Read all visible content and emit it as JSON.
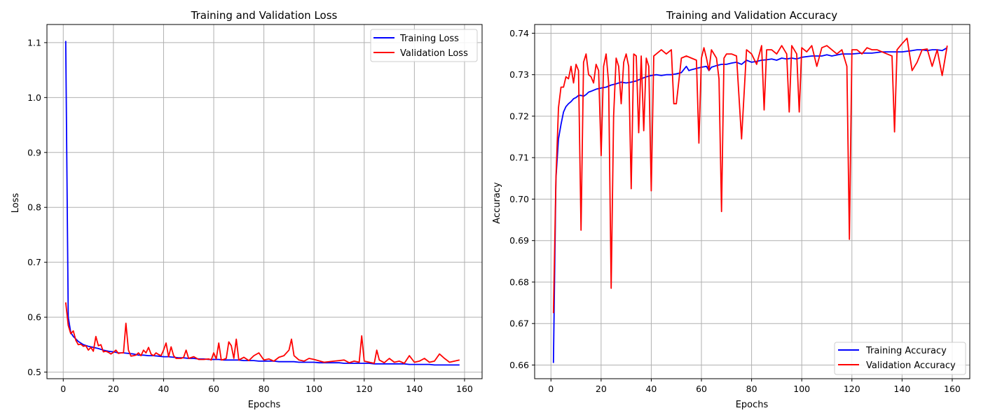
{
  "colors": {
    "training": "#0000ff",
    "validation": "#ff0000",
    "grid": "#b0b0b0"
  },
  "chart_data": [
    {
      "type": "line",
      "title": "Training and Validation Loss",
      "xlabel": "Epochs",
      "ylabel": "Loss",
      "xlim": [
        -6.5,
        167
      ],
      "ylim": [
        0.488,
        1.133
      ],
      "xticks": [
        0,
        20,
        40,
        60,
        80,
        100,
        120,
        140,
        160
      ],
      "yticks": [
        0.5,
        0.6,
        0.7,
        0.8,
        0.9,
        1.0,
        1.1
      ],
      "ytick_labels": [
        "0.5",
        "0.6",
        "0.7",
        "0.8",
        "0.9",
        "1.0",
        "1.1"
      ],
      "grid": true,
      "legend": "top-right",
      "series": [
        {
          "name": "Training Loss",
          "color": "#0000ff",
          "x": [
            1,
            2,
            3,
            4,
            6,
            8,
            10,
            12,
            14,
            16,
            18,
            20,
            22,
            24,
            26,
            28,
            30,
            32,
            34,
            36,
            38,
            40,
            42,
            44,
            46,
            48,
            50,
            52,
            54,
            56,
            58,
            60,
            62,
            64,
            66,
            68,
            70,
            72,
            74,
            76,
            78,
            80,
            82,
            84,
            86,
            88,
            90,
            92,
            94,
            96,
            98,
            100,
            102,
            104,
            106,
            108,
            110,
            112,
            114,
            116,
            118,
            120,
            122,
            124,
            126,
            128,
            130,
            132,
            134,
            136,
            138,
            140,
            142,
            144,
            146,
            148,
            150,
            152,
            154,
            156,
            158
          ],
          "y": [
            1.103,
            0.6,
            0.572,
            0.565,
            0.556,
            0.55,
            0.547,
            0.545,
            0.543,
            0.54,
            0.538,
            0.537,
            0.535,
            0.535,
            0.534,
            0.533,
            0.531,
            0.531,
            0.53,
            0.53,
            0.529,
            0.528,
            0.528,
            0.527,
            0.526,
            0.526,
            0.525,
            0.525,
            0.524,
            0.524,
            0.523,
            0.523,
            0.523,
            0.522,
            0.522,
            0.522,
            0.522,
            0.521,
            0.521,
            0.521,
            0.52,
            0.52,
            0.52,
            0.52,
            0.519,
            0.519,
            0.519,
            0.519,
            0.518,
            0.518,
            0.518,
            0.518,
            0.517,
            0.517,
            0.517,
            0.517,
            0.517,
            0.516,
            0.516,
            0.516,
            0.516,
            0.516,
            0.516,
            0.515,
            0.515,
            0.515,
            0.515,
            0.515,
            0.515,
            0.515,
            0.514,
            0.514,
            0.514,
            0.514,
            0.514,
            0.513,
            0.513,
            0.513,
            0.513,
            0.513,
            0.513
          ]
        },
        {
          "name": "Validation Loss",
          "color": "#ff0000",
          "x": [
            1,
            2,
            3,
            4,
            5,
            6,
            7,
            8,
            9,
            10,
            11,
            12,
            13,
            14,
            15,
            16,
            17,
            18,
            19,
            20,
            21,
            22,
            23,
            24,
            25,
            26,
            27,
            28,
            29,
            30,
            31,
            32,
            33,
            34,
            35,
            36,
            37,
            38,
            39,
            40,
            41,
            42,
            43,
            44,
            45,
            46,
            47,
            48,
            49,
            50,
            52,
            54,
            56,
            58,
            59,
            60,
            61,
            62,
            63,
            64,
            65,
            66,
            67,
            68,
            69,
            70,
            72,
            74,
            76,
            78,
            80,
            82,
            84,
            86,
            88,
            90,
            91,
            92,
            94,
            96,
            98,
            100,
            104,
            108,
            110,
            112,
            114,
            116,
            118,
            119,
            120,
            122,
            124,
            125,
            126,
            128,
            130,
            132,
            134,
            136,
            138,
            140,
            142,
            144,
            146,
            148,
            150,
            152,
            154,
            156,
            158
          ],
          "y": [
            0.627,
            0.585,
            0.57,
            0.575,
            0.558,
            0.55,
            0.551,
            0.547,
            0.548,
            0.54,
            0.545,
            0.538,
            0.565,
            0.548,
            0.55,
            0.537,
            0.538,
            0.536,
            0.533,
            0.536,
            0.54,
            0.534,
            0.535,
            0.535,
            0.589,
            0.54,
            0.529,
            0.53,
            0.531,
            0.535,
            0.53,
            0.54,
            0.535,
            0.545,
            0.533,
            0.53,
            0.535,
            0.532,
            0.53,
            0.54,
            0.553,
            0.528,
            0.546,
            0.53,
            0.525,
            0.525,
            0.525,
            0.527,
            0.54,
            0.525,
            0.528,
            0.523,
            0.523,
            0.524,
            0.522,
            0.535,
            0.524,
            0.553,
            0.522,
            0.523,
            0.525,
            0.555,
            0.548,
            0.525,
            0.56,
            0.522,
            0.527,
            0.521,
            0.53,
            0.535,
            0.522,
            0.524,
            0.52,
            0.527,
            0.53,
            0.54,
            0.56,
            0.53,
            0.522,
            0.52,
            0.525,
            0.523,
            0.518,
            0.52,
            0.521,
            0.522,
            0.517,
            0.52,
            0.518,
            0.566,
            0.52,
            0.518,
            0.516,
            0.54,
            0.522,
            0.517,
            0.525,
            0.518,
            0.52,
            0.516,
            0.53,
            0.518,
            0.52,
            0.525,
            0.518,
            0.52,
            0.533,
            0.525,
            0.518,
            0.52,
            0.522
          ]
        }
      ]
    },
    {
      "type": "line",
      "title": "Training and Validation Accuracy",
      "xlabel": "Epochs",
      "ylabel": "Accuracy",
      "xlim": [
        -6.5,
        167
      ],
      "ylim": [
        0.6567,
        0.7421
      ],
      "xticks": [
        0,
        20,
        40,
        60,
        80,
        100,
        120,
        140,
        160
      ],
      "yticks": [
        0.66,
        0.67,
        0.68,
        0.69,
        0.7,
        0.71,
        0.72,
        0.73,
        0.74
      ],
      "ytick_labels": [
        "0.66",
        "0.67",
        "0.68",
        "0.69",
        "0.70",
        "0.71",
        "0.72",
        "0.73",
        "0.74"
      ],
      "grid": true,
      "legend": "bottom-right",
      "series": [
        {
          "name": "Training Accuracy",
          "color": "#0000ff",
          "x": [
            1,
            2,
            3,
            4,
            5,
            6,
            7,
            8,
            9,
            10,
            11,
            12,
            13,
            14,
            15,
            16,
            18,
            20,
            22,
            24,
            26,
            28,
            30,
            32,
            34,
            36,
            38,
            40,
            42,
            44,
            46,
            48,
            50,
            52,
            54,
            55,
            56,
            58,
            60,
            62,
            63,
            64,
            66,
            68,
            70,
            72,
            74,
            76,
            78,
            80,
            82,
            84,
            86,
            88,
            90,
            92,
            94,
            96,
            98,
            100,
            104,
            108,
            110,
            112,
            116,
            120,
            124,
            128,
            132,
            136,
            140,
            144,
            146,
            148,
            150,
            152,
            154,
            156,
            158
          ],
          "y": [
            0.6605,
            0.705,
            0.7145,
            0.718,
            0.721,
            0.7223,
            0.723,
            0.7235,
            0.7242,
            0.7245,
            0.725,
            0.725,
            0.7248,
            0.7252,
            0.7258,
            0.726,
            0.7265,
            0.7268,
            0.727,
            0.7275,
            0.7278,
            0.7282,
            0.728,
            0.7282,
            0.7285,
            0.729,
            0.7295,
            0.7298,
            0.73,
            0.7298,
            0.73,
            0.73,
            0.7302,
            0.7305,
            0.732,
            0.731,
            0.7312,
            0.7315,
            0.7318,
            0.732,
            0.731,
            0.7318,
            0.7322,
            0.7325,
            0.7325,
            0.7328,
            0.733,
            0.7325,
            0.7335,
            0.733,
            0.7332,
            0.7335,
            0.7336,
            0.7338,
            0.7335,
            0.734,
            0.7338,
            0.734,
            0.7338,
            0.7342,
            0.7345,
            0.7345,
            0.7348,
            0.7345,
            0.735,
            0.735,
            0.7352,
            0.7352,
            0.7355,
            0.7355,
            0.7355,
            0.7358,
            0.736,
            0.736,
            0.7358,
            0.736,
            0.736,
            0.7358,
            0.7365
          ]
        },
        {
          "name": "Validation Accuracy",
          "color": "#ff0000",
          "x": [
            1,
            2,
            3,
            4,
            5,
            6,
            7,
            8,
            9,
            10,
            11,
            12,
            13,
            14,
            15,
            16,
            17,
            18,
            19,
            20,
            21,
            22,
            23,
            24,
            25,
            26,
            27,
            28,
            29,
            30,
            31,
            32,
            33,
            34,
            35,
            36,
            37,
            38,
            39,
            40,
            41,
            42,
            44,
            46,
            48,
            49,
            50,
            52,
            54,
            56,
            58,
            59,
            60,
            61,
            62,
            63,
            64,
            66,
            67,
            68,
            69,
            70,
            72,
            74,
            76,
            78,
            80,
            82,
            84,
            85,
            86,
            88,
            90,
            92,
            94,
            95,
            96,
            98,
            99,
            100,
            102,
            104,
            106,
            108,
            110,
            112,
            114,
            116,
            118,
            119,
            120,
            122,
            124,
            126,
            128,
            130,
            132,
            134,
            136,
            137,
            138,
            140,
            142,
            144,
            146,
            148,
            150,
            152,
            154,
            156,
            158
          ],
          "y": [
            0.6725,
            0.705,
            0.722,
            0.727,
            0.727,
            0.7295,
            0.729,
            0.732,
            0.728,
            0.7325,
            0.731,
            0.6925,
            0.733,
            0.735,
            0.73,
            0.7295,
            0.728,
            0.7325,
            0.731,
            0.7105,
            0.732,
            0.735,
            0.728,
            0.6785,
            0.72,
            0.734,
            0.732,
            0.723,
            0.733,
            0.735,
            0.732,
            0.7025,
            0.735,
            0.7345,
            0.716,
            0.7345,
            0.7165,
            0.734,
            0.732,
            0.702,
            0.7345,
            0.735,
            0.736,
            0.735,
            0.736,
            0.723,
            0.723,
            0.734,
            0.7345,
            0.734,
            0.7335,
            0.7135,
            0.734,
            0.7365,
            0.734,
            0.731,
            0.736,
            0.734,
            0.729,
            0.697,
            0.734,
            0.735,
            0.735,
            0.7345,
            0.7145,
            0.736,
            0.735,
            0.7325,
            0.737,
            0.7215,
            0.736,
            0.736,
            0.735,
            0.737,
            0.735,
            0.721,
            0.737,
            0.735,
            0.721,
            0.7365,
            0.7355,
            0.737,
            0.732,
            0.7365,
            0.737,
            0.736,
            0.735,
            0.736,
            0.732,
            0.6903,
            0.736,
            0.736,
            0.735,
            0.7365,
            0.736,
            0.736,
            0.7355,
            0.735,
            0.7345,
            0.7162,
            0.736,
            0.7375,
            0.7388,
            0.731,
            0.733,
            0.736,
            0.7362,
            0.732,
            0.736,
            0.7298,
            0.737
          ]
        }
      ]
    }
  ]
}
